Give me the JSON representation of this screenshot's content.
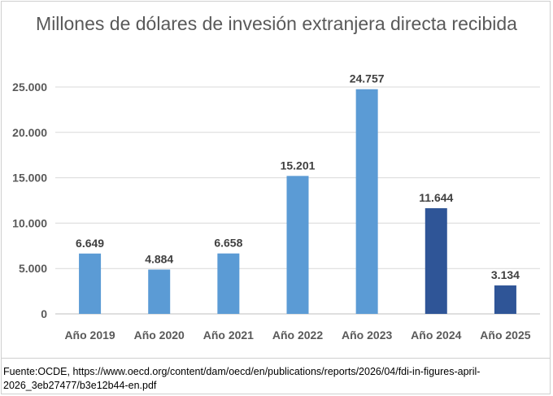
{
  "chart_data": {
    "type": "bar",
    "title": "Millones de dólares de invesión extranjera directa recibida",
    "categories": [
      "Año 2019",
      "Año 2020",
      "Año 2021",
      "Año 2022",
      "Año 2023",
      "Año 2024",
      "Año 2025"
    ],
    "values": [
      6649,
      4884,
      6658,
      15201,
      24757,
      11644,
      3134
    ],
    "value_labels": [
      "6.649",
      "4.884",
      "6.658",
      "15.201",
      "24.757",
      "11.644",
      "3.134"
    ],
    "bar_colors": [
      "#5B9BD5",
      "#5B9BD5",
      "#5B9BD5",
      "#5B9BD5",
      "#5B9BD5",
      "#2F5597",
      "#2F5597"
    ],
    "yticks": [
      0,
      5000,
      10000,
      15000,
      20000,
      25000
    ],
    "ytick_labels": [
      "0",
      "5.000",
      "10.000",
      "15.000",
      "20.000",
      "25.000"
    ],
    "ylim": [
      0,
      25000
    ],
    "xlabel": "",
    "ylabel": "",
    "grid": true,
    "legend": false
  },
  "source": "Fuente:OCDE, https://www.oecd.org/content/dam/oecd/en/publications/reports/2026/04/fdi-in-figures-april-2026_3eb27477/b3e12b44-en.pdf"
}
